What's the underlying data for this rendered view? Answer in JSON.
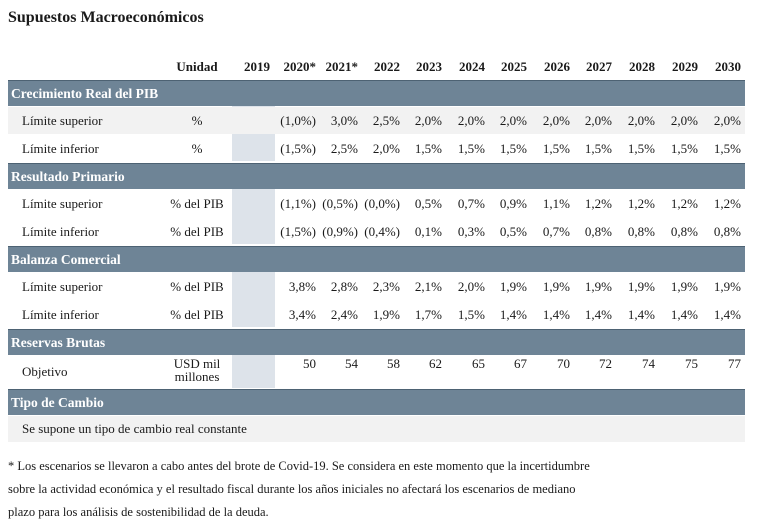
{
  "title": "Supuestos Macroeconómicos",
  "header": {
    "unidad": "Unidad",
    "years": [
      "2019",
      "2020*",
      "2021*",
      "2022",
      "2023",
      "2024",
      "2025",
      "2026",
      "2027",
      "2028",
      "2029",
      "2030"
    ]
  },
  "sections": [
    {
      "name": "Crecimiento Real del PIB",
      "rows": [
        {
          "label": "Límite superior",
          "unit": "%",
          "values": [
            "",
            "(1,0%)",
            "3,0%",
            "2,5%",
            "2,0%",
            "2,0%",
            "2,0%",
            "2,0%",
            "2,0%",
            "2,0%",
            "2,0%",
            "2,0%"
          ]
        },
        {
          "label": "Límite inferior",
          "unit": "%",
          "values": [
            "",
            "(1,5%)",
            "2,5%",
            "2,0%",
            "1,5%",
            "1,5%",
            "1,5%",
            "1,5%",
            "1,5%",
            "1,5%",
            "1,5%",
            "1,5%"
          ]
        }
      ]
    },
    {
      "name": "Resultado Primario",
      "rows": [
        {
          "label": "Límite superior",
          "unit": "% del PIB",
          "values": [
            "",
            "(1,1%)",
            "(0,5%)",
            "(0,0%)",
            "0,5%",
            "0,7%",
            "0,9%",
            "1,1%",
            "1,2%",
            "1,2%",
            "1,2%",
            "1,2%"
          ]
        },
        {
          "label": "Límite inferior",
          "unit": "% del PIB",
          "values": [
            "",
            "(1,5%)",
            "(0,9%)",
            "(0,4%)",
            "0,1%",
            "0,3%",
            "0,5%",
            "0,7%",
            "0,8%",
            "0,8%",
            "0,8%",
            "0,8%"
          ]
        }
      ]
    },
    {
      "name": "Balanza Comercial",
      "rows": [
        {
          "label": "Límite superior",
          "unit": "% del PIB",
          "values": [
            "",
            "3,8%",
            "2,8%",
            "2,3%",
            "2,1%",
            "2,0%",
            "1,9%",
            "1,9%",
            "1,9%",
            "1,9%",
            "1,9%",
            "1,9%"
          ]
        },
        {
          "label": "Límite inferior",
          "unit": "% del PIB",
          "values": [
            "",
            "3,4%",
            "2,4%",
            "1,9%",
            "1,7%",
            "1,5%",
            "1,4%",
            "1,4%",
            "1,4%",
            "1,4%",
            "1,4%",
            "1,4%"
          ]
        }
      ]
    },
    {
      "name": "Reservas Brutas",
      "rows": [
        {
          "label": "Objetivo",
          "unit_line1": "USD mil",
          "unit_line2": "millones",
          "values": [
            "",
            "50",
            "54",
            "58",
            "62",
            "65",
            "67",
            "70",
            "72",
            "74",
            "75",
            "77"
          ]
        }
      ]
    },
    {
      "name": "Tipo de Cambio",
      "rows": [
        {
          "label": "Se supone un tipo de cambio real constante"
        }
      ]
    }
  ],
  "footnote": {
    "line1": "* Los escenarios se llevaron a cabo antes del brote de Covid-19. Se considera en este momento que la incertidumbre",
    "line2": "sobre la actividad económica y el resultado fiscal durante los años iniciales no afectará los escenarios de mediano",
    "line3": "plazo para los análisis de sostenibilidad de la deuda."
  }
}
